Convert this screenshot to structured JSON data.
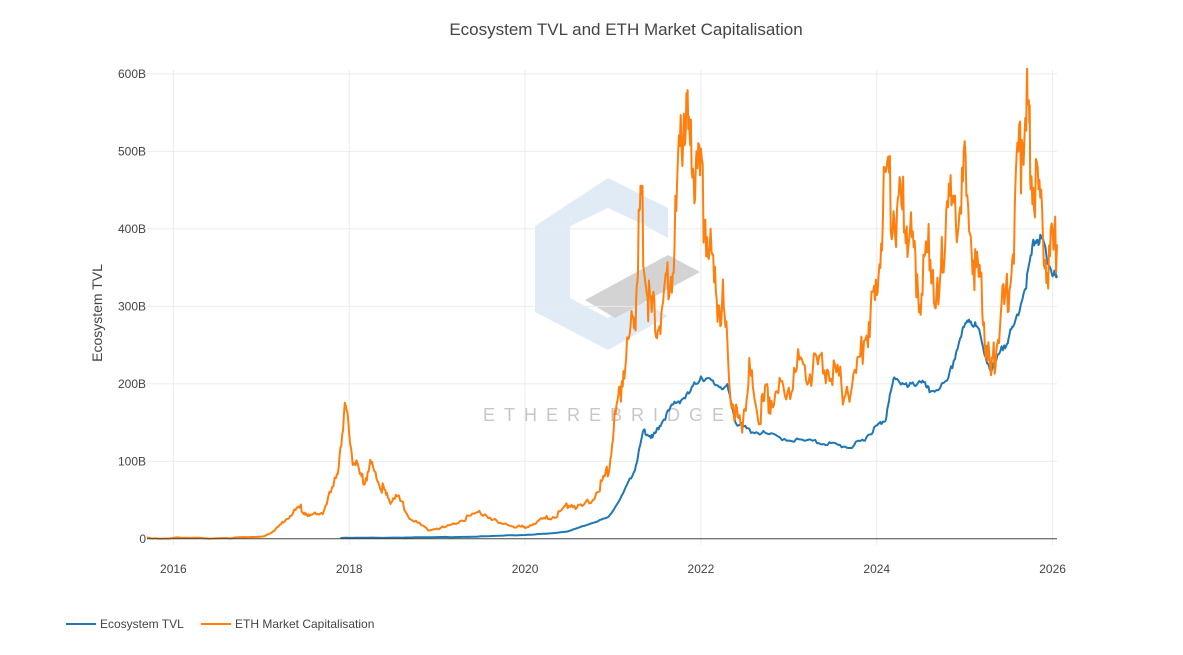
{
  "chart_data": {
    "type": "line",
    "title": "Ecosystem TVL and ETH Market Capitalisation",
    "xlabel": "",
    "ylabel": "Ecosystem TVL",
    "xlim": [
      2015.7,
      2026.05
    ],
    "ylim": [
      -8,
      605
    ],
    "grid": true,
    "legend_position": "bottom-left",
    "x_ticks": [
      2016,
      2018,
      2020,
      2022,
      2024,
      2026
    ],
    "x_tick_labels": [
      "2016",
      "2018",
      "2020",
      "2022",
      "2024",
      "2026"
    ],
    "y_ticks": [
      0,
      100,
      200,
      300,
      400,
      500,
      600
    ],
    "y_tick_labels": [
      "0",
      "100B",
      "200B",
      "300B",
      "400B",
      "500B",
      "600B"
    ],
    "watermark": "ETHEREBRIDGE",
    "series": [
      {
        "name": "Ecosystem TVL",
        "color": "#1f77b4",
        "x": [
          2017.9,
          2018.5,
          2019.0,
          2019.5,
          2020.0,
          2020.3,
          2020.5,
          2020.75,
          2020.95,
          2021.1,
          2021.25,
          2021.35,
          2021.45,
          2021.55,
          2021.7,
          2021.85,
          2022.0,
          2022.15,
          2022.3,
          2022.4,
          2022.55,
          2022.75,
          2023.0,
          2023.3,
          2023.5,
          2023.7,
          2023.85,
          2024.0,
          2024.1,
          2024.2,
          2024.35,
          2024.5,
          2024.6,
          2024.8,
          2024.95,
          2025.05,
          2025.15,
          2025.3,
          2025.45,
          2025.55,
          2025.7,
          2025.8,
          2025.9,
          2026.0,
          2026.05
        ],
        "y": [
          1,
          1.5,
          2,
          3,
          5,
          7,
          10,
          20,
          28,
          55,
          90,
          140,
          130,
          150,
          175,
          185,
          210,
          200,
          195,
          150,
          140,
          135,
          128,
          125,
          122,
          118,
          128,
          145,
          155,
          210,
          195,
          205,
          190,
          200,
          260,
          285,
          270,
          215,
          250,
          270,
          330,
          390,
          380,
          340,
          340
        ]
      },
      {
        "name": "ETH Market Capitalisation",
        "color": "#ff7f0e",
        "x": [
          2015.7,
          2016.0,
          2016.5,
          2017.0,
          2017.15,
          2017.3,
          2017.45,
          2017.55,
          2017.7,
          2017.85,
          2017.95,
          2018.05,
          2018.15,
          2018.25,
          2018.35,
          2018.45,
          2018.55,
          2018.7,
          2018.9,
          2019.1,
          2019.3,
          2019.5,
          2019.7,
          2019.9,
          2020.0,
          2020.2,
          2020.35,
          2020.5,
          2020.65,
          2020.85,
          2020.95,
          2021.05,
          2021.15,
          2021.25,
          2021.32,
          2021.4,
          2021.5,
          2021.6,
          2021.7,
          2021.8,
          2021.87,
          2021.95,
          2022.05,
          2022.15,
          2022.25,
          2022.35,
          2022.45,
          2022.55,
          2022.65,
          2022.75,
          2022.85,
          2023.0,
          2023.15,
          2023.3,
          2023.45,
          2023.6,
          2023.75,
          2023.9,
          2024.0,
          2024.1,
          2024.2,
          2024.3,
          2024.4,
          2024.5,
          2024.6,
          2024.7,
          2024.8,
          2024.9,
          2025.0,
          2025.1,
          2025.2,
          2025.3,
          2025.4,
          2025.5,
          2025.6,
          2025.7,
          2025.75,
          2025.85,
          2025.95,
          2026.05
        ],
        "y": [
          1,
          1,
          1,
          2,
          10,
          28,
          40,
          28,
          35,
          75,
          165,
          100,
          75,
          95,
          70,
          50,
          55,
          25,
          12,
          15,
          25,
          35,
          20,
          16,
          15,
          25,
          30,
          45,
          40,
          65,
          90,
          175,
          240,
          290,
          440,
          300,
          280,
          310,
          380,
          560,
          500,
          480,
          420,
          330,
          300,
          180,
          140,
          210,
          160,
          185,
          180,
          200,
          230,
          220,
          230,
          195,
          200,
          280,
          310,
          470,
          420,
          420,
          380,
          320,
          380,
          300,
          450,
          410,
          460,
          370,
          300,
          200,
          290,
          310,
          460,
          570,
          500,
          420,
          360,
          380
        ]
      }
    ]
  }
}
